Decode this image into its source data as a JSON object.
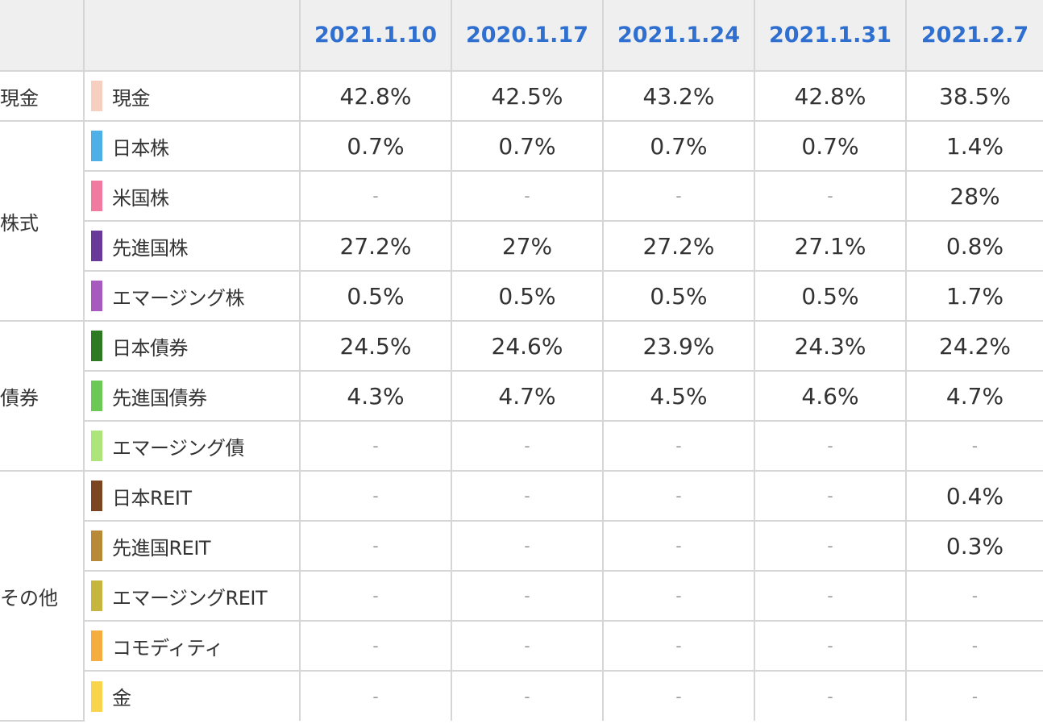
{
  "table": {
    "header": {
      "group_label": "",
      "asset_label": "",
      "dates": [
        "2021.1.10",
        "2020.1.17",
        "2021.1.24",
        "2021.1.31",
        "2021.2.7"
      ]
    },
    "groups": [
      {
        "name": "現金",
        "rows": [
          {
            "asset": "現金",
            "color": "#f6cfc0",
            "values": [
              "42.8%",
              "42.5%",
              "43.2%",
              "42.8%",
              "38.5%"
            ]
          }
        ]
      },
      {
        "name": "株式",
        "rows": [
          {
            "asset": "日本株",
            "color": "#4fb0e8",
            "values": [
              "0.7%",
              "0.7%",
              "0.7%",
              "0.7%",
              "1.4%"
            ]
          },
          {
            "asset": "米国株",
            "color": "#f07aa0",
            "values": [
              "-",
              "-",
              "-",
              "-",
              "28%"
            ]
          },
          {
            "asset": "先進国株",
            "color": "#6a3a9a",
            "values": [
              "27.2%",
              "27%",
              "27.2%",
              "27.1%",
              "0.8%"
            ]
          },
          {
            "asset": "エマージング株",
            "color": "#a85bbf",
            "values": [
              "0.5%",
              "0.5%",
              "0.5%",
              "0.5%",
              "1.7%"
            ]
          }
        ]
      },
      {
        "name": "債券",
        "rows": [
          {
            "asset": "日本債券",
            "color": "#2e7a22",
            "values": [
              "24.5%",
              "24.6%",
              "23.9%",
              "24.3%",
              "24.2%"
            ]
          },
          {
            "asset": "先進国債券",
            "color": "#6cc956",
            "values": [
              "4.3%",
              "4.7%",
              "4.5%",
              "4.6%",
              "4.7%"
            ]
          },
          {
            "asset": "エマージング債",
            "color": "#aee57a",
            "values": [
              "-",
              "-",
              "-",
              "-",
              "-"
            ]
          }
        ]
      },
      {
        "name": "その他",
        "rows": [
          {
            "asset": "日本REIT",
            "color": "#7a4520",
            "values": [
              "-",
              "-",
              "-",
              "-",
              "0.4%"
            ]
          },
          {
            "asset": "先進国REIT",
            "color": "#b88a38",
            "values": [
              "-",
              "-",
              "-",
              "-",
              "0.3%"
            ]
          },
          {
            "asset": "エマージングREIT",
            "color": "#c6b640",
            "values": [
              "-",
              "-",
              "-",
              "-",
              "-"
            ]
          },
          {
            "asset": "コモディティ",
            "color": "#f5ad40",
            "values": [
              "-",
              "-",
              "-",
              "-",
              "-"
            ]
          },
          {
            "asset": "金",
            "color": "#f8d54c",
            "values": [
              "-",
              "-",
              "-",
              "-",
              "-"
            ]
          }
        ]
      }
    ]
  }
}
